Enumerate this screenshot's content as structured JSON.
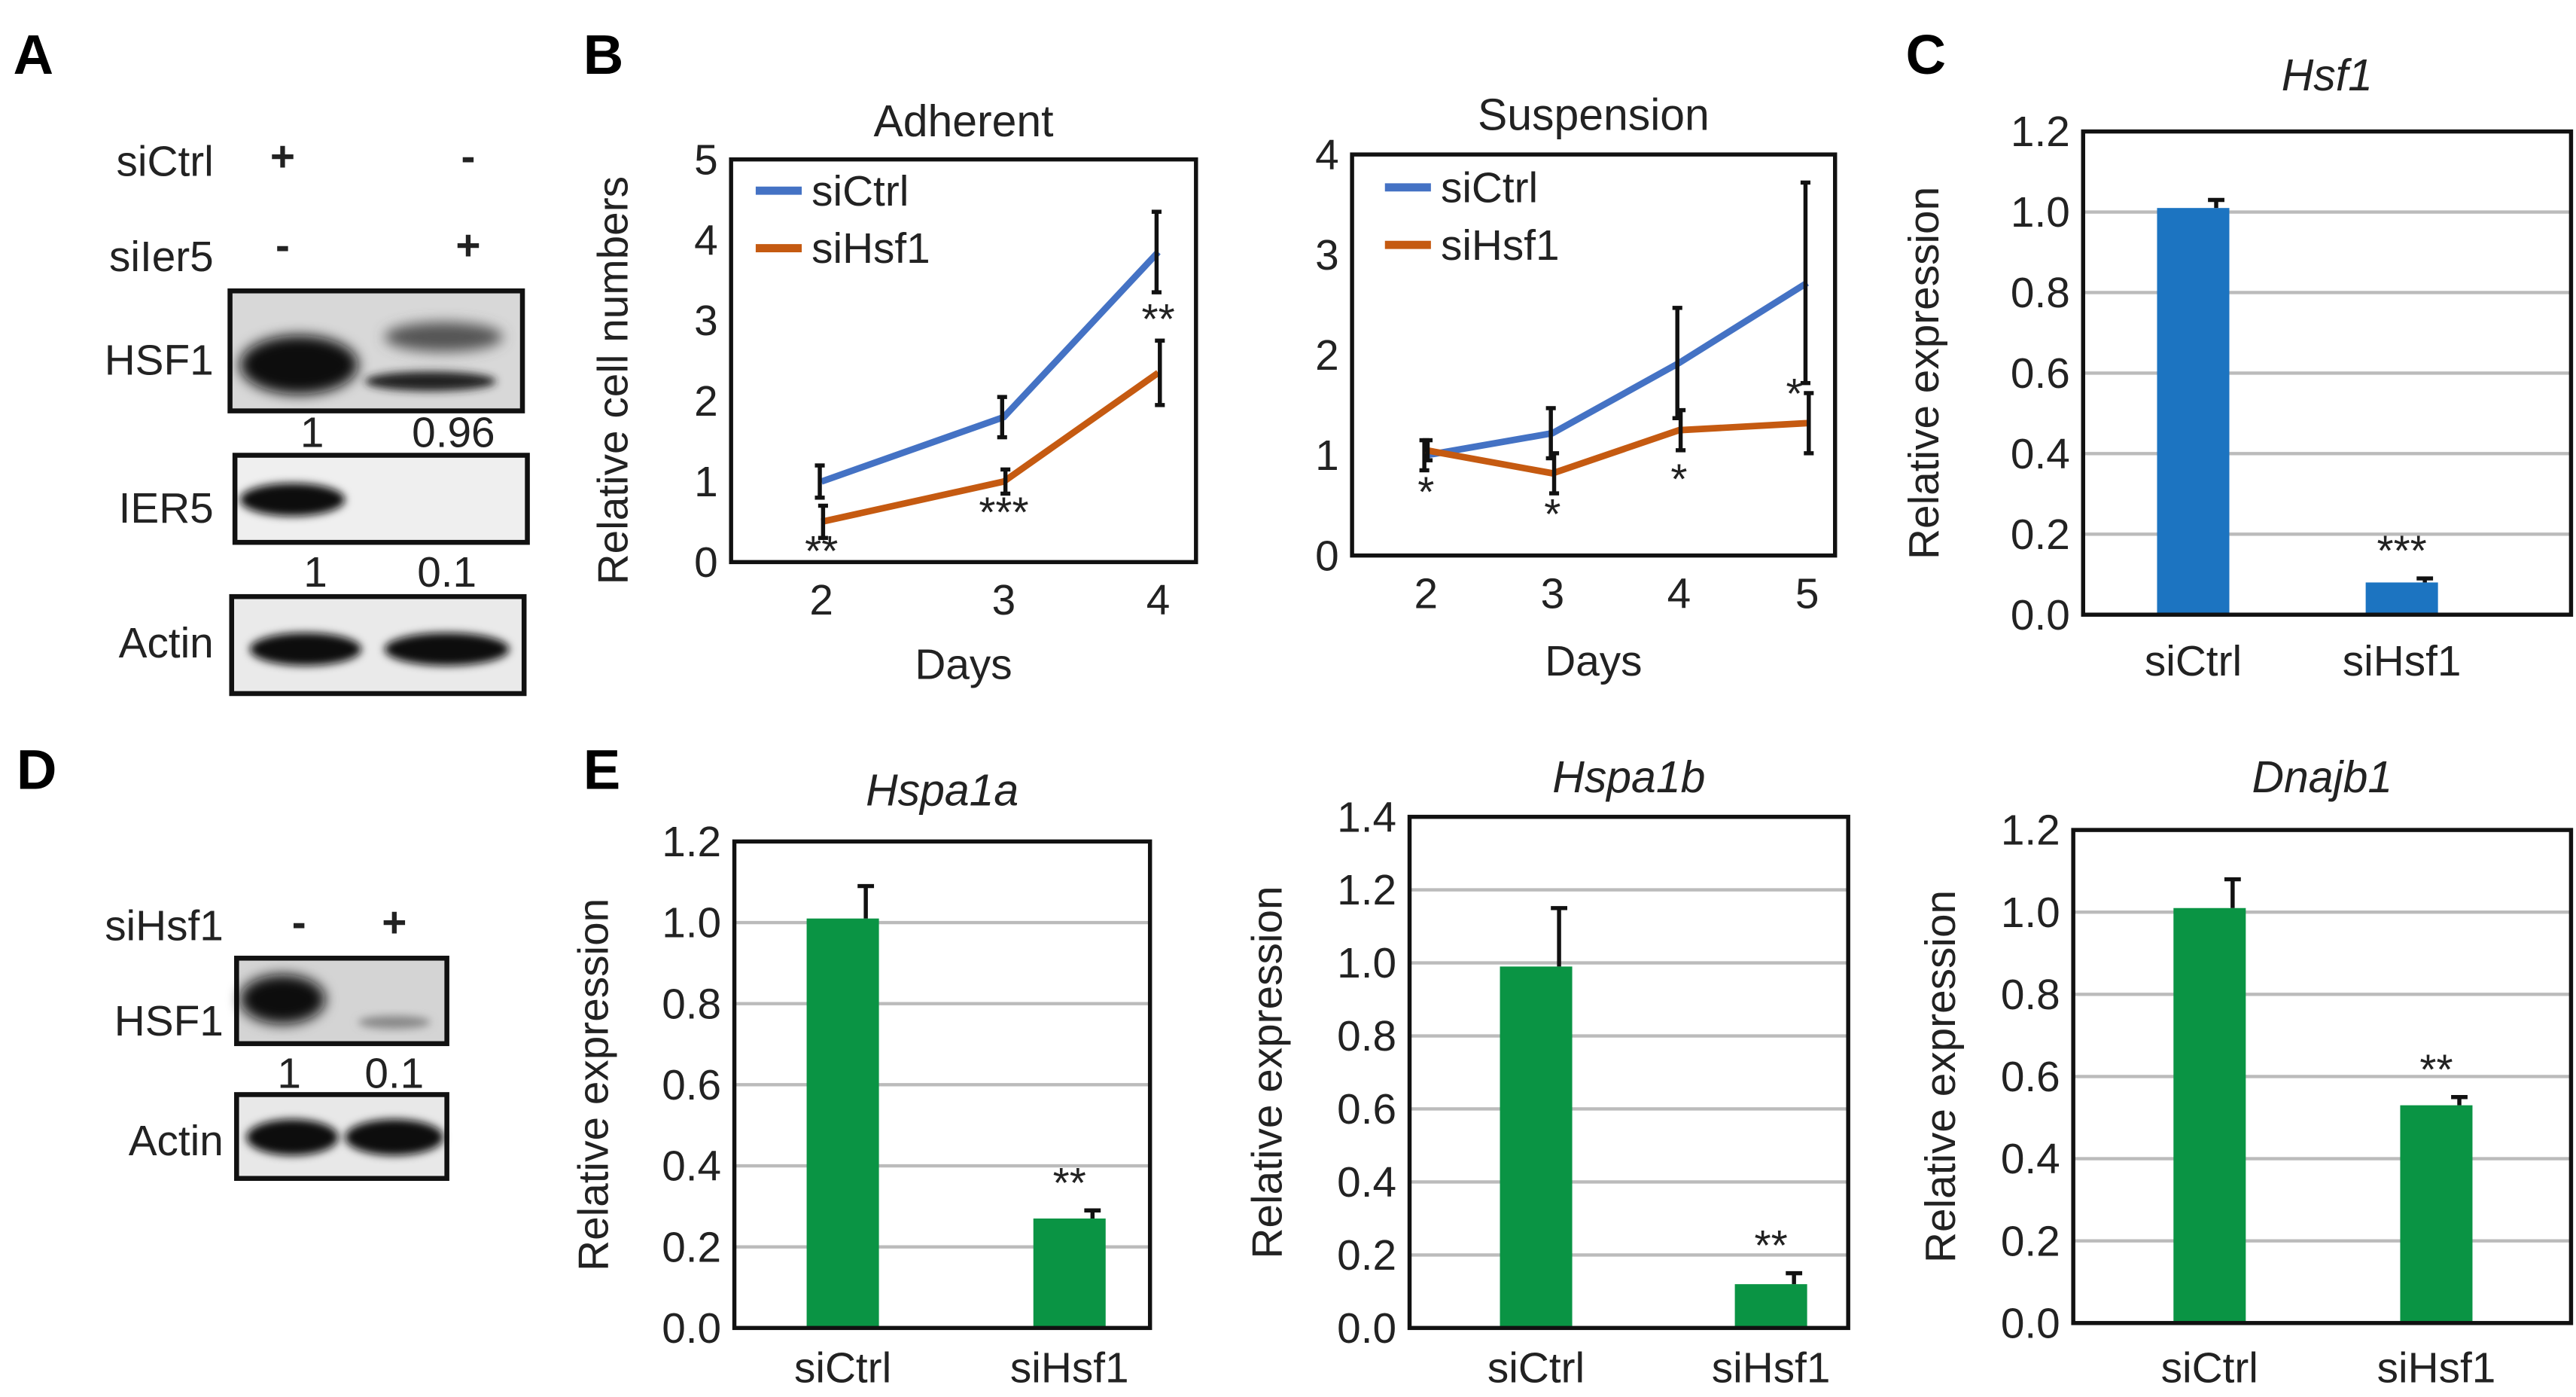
{
  "panels": {
    "A": "A",
    "B": "B",
    "C": "C",
    "D": "D",
    "E": "E"
  },
  "blot_A": {
    "rows": [
      {
        "label": "siCtrl",
        "signs": [
          "+",
          "-"
        ]
      },
      {
        "label": "siIer5",
        "signs": [
          "-",
          "+"
        ]
      }
    ],
    "bands": [
      "HSF1",
      "IER5",
      "Actin"
    ],
    "hsf1_quant": [
      "1",
      "0.96"
    ],
    "ier5_quant": [
      "1",
      "0.1"
    ]
  },
  "blot_D": {
    "rows": [
      {
        "label": "siHsf1",
        "signs": [
          "-",
          "+"
        ]
      }
    ],
    "bands": [
      "HSF1",
      "Actin"
    ],
    "hsf1_quant": [
      "1",
      "0.1"
    ]
  },
  "colors": {
    "siCtrl_line": "#4472c4",
    "siHsf1_line": "#c55a11",
    "bar_C": "#1c74c1",
    "bar_E": "#0a9444"
  },
  "chart_data": [
    {
      "id": "adherent",
      "type": "line",
      "title": "Adherent",
      "xlabel": "Days",
      "ylabel": "Relative cell numbers",
      "x": [
        2,
        3,
        4
      ],
      "xtick_labels": [
        "2",
        "3",
        "4"
      ],
      "ylim": [
        0,
        5
      ],
      "yticks": [
        0,
        1,
        2,
        3,
        4,
        5
      ],
      "ytick_labels": [
        "0",
        "1",
        "2",
        "3",
        "4",
        "5"
      ],
      "legend": "top-left",
      "series": [
        {
          "name": "siCtrl",
          "values": [
            1.0,
            1.8,
            3.85
          ],
          "err": [
            0.2,
            0.25,
            0.5
          ]
        },
        {
          "name": "siHsf1",
          "values": [
            0.5,
            1.0,
            2.35
          ],
          "err": [
            0.2,
            0.15,
            0.4
          ]
        }
      ],
      "annotations": [
        {
          "x": 2,
          "y": 0.12,
          "text": "**"
        },
        {
          "x": 3,
          "y": 0.6,
          "text": "***"
        },
        {
          "x": 4,
          "y": 3.0,
          "text": "**"
        }
      ]
    },
    {
      "id": "suspension",
      "type": "line",
      "title": "Suspension",
      "xlabel": "Days",
      "ylabel": "",
      "x": [
        2,
        3,
        4,
        5
      ],
      "xtick_labels": [
        "2",
        "3",
        "4",
        "5"
      ],
      "ylim": [
        0,
        4
      ],
      "yticks": [
        0,
        1,
        2,
        3,
        4
      ],
      "ytick_labels": [
        "0",
        "1",
        "2",
        "3",
        "4"
      ],
      "legend": "top-left",
      "series": [
        {
          "name": "siCtrl",
          "values": [
            1.0,
            1.22,
            1.92,
            2.72
          ],
          "err": [
            0.15,
            0.25,
            0.55,
            1.0
          ]
        },
        {
          "name": "siHsf1",
          "values": [
            1.05,
            0.82,
            1.25,
            1.32
          ],
          "err": [
            0.1,
            0.2,
            0.2,
            0.3
          ]
        }
      ],
      "annotations": [
        {
          "x": 2,
          "y": 0.62,
          "text": "*"
        },
        {
          "x": 3,
          "y": 0.4,
          "text": "*"
        },
        {
          "x": 4,
          "y": 0.75,
          "text": "*"
        },
        {
          "x": 4.9,
          "y": 1.6,
          "text": "*"
        }
      ]
    },
    {
      "id": "hsf1",
      "type": "bar",
      "title": "Hsf1",
      "xlabel": "",
      "ylabel": "Relative expression",
      "categories": [
        "siCtrl",
        "siHsf1"
      ],
      "values": [
        1.01,
        0.08
      ],
      "err": [
        0.02,
        0.01
      ],
      "ylim": [
        0,
        1.2
      ],
      "yticks": [
        0,
        0.2,
        0.4,
        0.6,
        0.8,
        1.0,
        1.2
      ],
      "ytick_labels": [
        "0.0",
        "0.2",
        "0.4",
        "0.6",
        "0.8",
        "1.0",
        "1.2"
      ],
      "annotations": [
        {
          "category": "siHsf1",
          "text": "***"
        }
      ]
    },
    {
      "id": "hspa1a",
      "type": "bar",
      "title": "Hspa1a",
      "xlabel": "",
      "ylabel": "Relative expression",
      "categories": [
        "siCtrl",
        "siHsf1"
      ],
      "values": [
        1.01,
        0.27
      ],
      "err": [
        0.08,
        0.02
      ],
      "ylim": [
        0,
        1.2
      ],
      "yticks": [
        0,
        0.2,
        0.4,
        0.6,
        0.8,
        1.0,
        1.2
      ],
      "ytick_labels": [
        "0.0",
        "0.2",
        "0.4",
        "0.6",
        "0.8",
        "1.0",
        "1.2"
      ],
      "annotations": [
        {
          "category": "siHsf1",
          "text": "**"
        }
      ]
    },
    {
      "id": "hspa1b",
      "type": "bar",
      "title": "Hspa1b",
      "xlabel": "",
      "ylabel": "Relative expression",
      "categories": [
        "siCtrl",
        "siHsf1"
      ],
      "values": [
        0.99,
        0.12
      ],
      "err": [
        0.16,
        0.03
      ],
      "ylim": [
        0,
        1.4
      ],
      "yticks": [
        0,
        0.2,
        0.4,
        0.6,
        0.8,
        1.0,
        1.2,
        1.4
      ],
      "ytick_labels": [
        "0.0",
        "0.2",
        "0.4",
        "0.6",
        "0.8",
        "1.0",
        "1.2",
        "1.4"
      ],
      "annotations": [
        {
          "category": "siHsf1",
          "text": "**"
        }
      ]
    },
    {
      "id": "dnajb1",
      "type": "bar",
      "title": "Dnajb1",
      "xlabel": "",
      "ylabel": "Relative expression",
      "categories": [
        "siCtrl",
        "siHsf1"
      ],
      "values": [
        1.01,
        0.53
      ],
      "err": [
        0.07,
        0.02
      ],
      "ylim": [
        0,
        1.2
      ],
      "yticks": [
        0,
        0.2,
        0.4,
        0.6,
        0.8,
        1.0,
        1.2
      ],
      "ytick_labels": [
        "0.0",
        "0.2",
        "0.4",
        "0.6",
        "0.8",
        "1.0",
        "1.2"
      ],
      "annotations": [
        {
          "category": "siHsf1",
          "text": "**"
        }
      ]
    }
  ]
}
